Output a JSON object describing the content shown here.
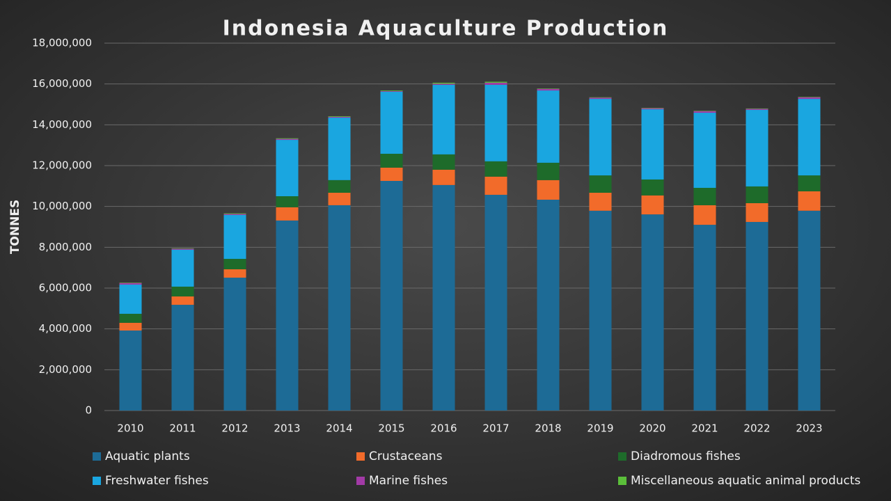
{
  "chart_data": {
    "type": "stacked_bar",
    "title": "Indonesia Aquaculture Production",
    "y_label": "TONNES",
    "categories": [
      "2010",
      "2011",
      "2012",
      "2013",
      "2014",
      "2015",
      "2016",
      "2017",
      "2018",
      "2019",
      "2020",
      "2021",
      "2022",
      "2023"
    ],
    "series": [
      {
        "name": "Aquatic plants",
        "color": "#1d6b96",
        "values": [
          3920000,
          5180000,
          6510000,
          9310000,
          10060000,
          11250000,
          11050000,
          10570000,
          10330000,
          9790000,
          9610000,
          9100000,
          9240000,
          9790000
        ]
      },
      {
        "name": "Crustaceans",
        "color": "#f26b2a",
        "values": [
          380000,
          410000,
          410000,
          650000,
          610000,
          650000,
          750000,
          890000,
          960000,
          880000,
          930000,
          960000,
          920000,
          950000
        ]
      },
      {
        "name": "Diadromous fishes",
        "color": "#1e6b2a",
        "values": [
          440000,
          480000,
          510000,
          540000,
          620000,
          680000,
          750000,
          750000,
          850000,
          850000,
          780000,
          850000,
          820000,
          780000
        ]
      },
      {
        "name": "Freshwater fishes",
        "color": "#1aa6e0",
        "values": [
          1430000,
          1810000,
          2150000,
          2760000,
          3060000,
          3040000,
          3410000,
          3750000,
          3540000,
          3750000,
          3440000,
          3680000,
          3750000,
          3750000
        ]
      },
      {
        "name": "Marine fishes",
        "color": "#a23aa6",
        "values": [
          80000,
          50000,
          50000,
          50000,
          40000,
          30000,
          50000,
          100000,
          80000,
          60000,
          50000,
          80000,
          50000,
          80000
        ]
      },
      {
        "name": "Miscellaneous aquatic animal products",
        "color": "#5bbf3a",
        "values": [
          20000,
          20000,
          30000,
          30000,
          30000,
          30000,
          50000,
          50000,
          20000,
          20000,
          20000,
          20000,
          20000,
          20000
        ]
      }
    ],
    "ylim": [
      0,
      18000000
    ],
    "yticks": [
      0,
      {
        "value": 2000000,
        "label": "2,000,000"
      },
      {
        "value": 4000000,
        "label": "4,000,000"
      },
      {
        "value": 6000000,
        "label": "6,000,000"
      },
      {
        "value": 8000000,
        "label": "8,000,000"
      },
      {
        "value": 10000000,
        "label": "10,000,000"
      },
      {
        "value": 12000000,
        "label": "12,000,000"
      },
      {
        "value": 14000000,
        "label": "14,000,000"
      },
      {
        "value": 16000000,
        "label": "16,000,000"
      },
      {
        "value": 18000000,
        "label": "18,000,000"
      }
    ],
    "grid": true,
    "legend": "bottom"
  }
}
